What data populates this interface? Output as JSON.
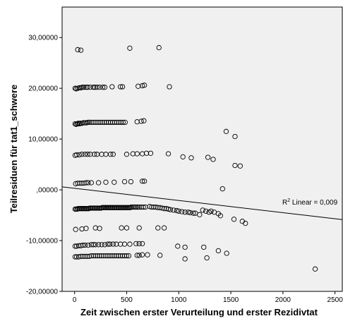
{
  "chart_data": {
    "type": "scatter",
    "xlabel": "Zeit zwischen erster Verurteilung und erster Rezidivtat",
    "ylabel": "Teilresiduen für tat1_schwere",
    "xlim": [
      -120,
      2570
    ],
    "ylim": [
      -20,
      36
    ],
    "x_ticks": [
      0,
      500,
      1000,
      1500,
      2000,
      2500
    ],
    "x_tick_labels": [
      "0",
      "500",
      "1000",
      "1500",
      "2000",
      "2500"
    ],
    "y_ticks": [
      30,
      20,
      10,
      0,
      -10,
      -20
    ],
    "y_tick_labels": [
      "30,00000",
      "20,00000",
      "10,00000",
      ",00000",
      "-10,00000",
      "-20,00000"
    ],
    "grid": false,
    "background": "#f0f0f0",
    "marker_color": "#000000",
    "fit_line": {
      "intercept": 0.3,
      "slope": -0.0024,
      "label_prefix": "R",
      "label_sup": "2",
      "label_suffix": " Linear = 0,009"
    },
    "points": [
      [
        30,
        27.6
      ],
      [
        60,
        27.5
      ],
      [
        530,
        27.9
      ],
      [
        810,
        28.0
      ],
      [
        5,
        20.0
      ],
      [
        15,
        19.9
      ],
      [
        30,
        20.0
      ],
      [
        45,
        20.1
      ],
      [
        60,
        20.1
      ],
      [
        75,
        20.2
      ],
      [
        90,
        20.2
      ],
      [
        110,
        20.2
      ],
      [
        125,
        20.2
      ],
      [
        150,
        20.2
      ],
      [
        180,
        20.2
      ],
      [
        195,
        20.2
      ],
      [
        215,
        20.2
      ],
      [
        240,
        20.2
      ],
      [
        270,
        20.2
      ],
      [
        290,
        20.2
      ],
      [
        360,
        20.3
      ],
      [
        440,
        20.3
      ],
      [
        460,
        20.3
      ],
      [
        610,
        20.4
      ],
      [
        650,
        20.5
      ],
      [
        670,
        20.6
      ],
      [
        910,
        20.3
      ],
      [
        5,
        13.0
      ],
      [
        15,
        12.9
      ],
      [
        25,
        13.0
      ],
      [
        35,
        13.1
      ],
      [
        45,
        13.0
      ],
      [
        55,
        13.1
      ],
      [
        70,
        13.1
      ],
      [
        85,
        13.2
      ],
      [
        100,
        13.2
      ],
      [
        115,
        13.2
      ],
      [
        130,
        13.3
      ],
      [
        145,
        13.3
      ],
      [
        165,
        13.3
      ],
      [
        185,
        13.3
      ],
      [
        205,
        13.3
      ],
      [
        225,
        13.3
      ],
      [
        245,
        13.3
      ],
      [
        265,
        13.3
      ],
      [
        285,
        13.3
      ],
      [
        305,
        13.3
      ],
      [
        325,
        13.3
      ],
      [
        345,
        13.3
      ],
      [
        365,
        13.3
      ],
      [
        385,
        13.3
      ],
      [
        405,
        13.3
      ],
      [
        425,
        13.3
      ],
      [
        445,
        13.3
      ],
      [
        465,
        13.3
      ],
      [
        485,
        13.3
      ],
      [
        600,
        13.4
      ],
      [
        640,
        13.5
      ],
      [
        665,
        13.6
      ],
      [
        1455,
        11.5
      ],
      [
        1540,
        10.5
      ],
      [
        5,
        6.8
      ],
      [
        20,
        6.9
      ],
      [
        45,
        6.9
      ],
      [
        70,
        7.0
      ],
      [
        100,
        7.0
      ],
      [
        125,
        7.0
      ],
      [
        150,
        7.0
      ],
      [
        190,
        7.0
      ],
      [
        215,
        7.0
      ],
      [
        260,
        7.0
      ],
      [
        300,
        7.0
      ],
      [
        345,
        7.0
      ],
      [
        370,
        7.0
      ],
      [
        500,
        7.0
      ],
      [
        560,
        7.1
      ],
      [
        600,
        7.1
      ],
      [
        650,
        7.1
      ],
      [
        690,
        7.2
      ],
      [
        730,
        7.2
      ],
      [
        900,
        7.1
      ],
      [
        1040,
        6.5
      ],
      [
        1120,
        6.3
      ],
      [
        1280,
        6.4
      ],
      [
        1330,
        6.0
      ],
      [
        1540,
        4.8
      ],
      [
        1590,
        4.7
      ],
      [
        10,
        1.2
      ],
      [
        30,
        1.3
      ],
      [
        50,
        1.3
      ],
      [
        70,
        1.3
      ],
      [
        90,
        1.3
      ],
      [
        110,
        1.4
      ],
      [
        130,
        1.4
      ],
      [
        160,
        1.4
      ],
      [
        230,
        1.4
      ],
      [
        300,
        1.5
      ],
      [
        380,
        1.5
      ],
      [
        480,
        1.6
      ],
      [
        540,
        1.6
      ],
      [
        650,
        1.7
      ],
      [
        670,
        1.7
      ],
      [
        1420,
        0.2
      ],
      [
        5,
        -3.8
      ],
      [
        15,
        -3.8
      ],
      [
        25,
        -3.8
      ],
      [
        35,
        -3.7
      ],
      [
        45,
        -3.7
      ],
      [
        55,
        -3.7
      ],
      [
        65,
        -3.7
      ],
      [
        75,
        -3.7
      ],
      [
        85,
        -3.7
      ],
      [
        95,
        -3.7
      ],
      [
        105,
        -3.7
      ],
      [
        115,
        -3.7
      ],
      [
        125,
        -3.7
      ],
      [
        135,
        -3.7
      ],
      [
        145,
        -3.6
      ],
      [
        155,
        -3.6
      ],
      [
        165,
        -3.6
      ],
      [
        175,
        -3.6
      ],
      [
        185,
        -3.6
      ],
      [
        195,
        -3.6
      ],
      [
        205,
        -3.6
      ],
      [
        215,
        -3.6
      ],
      [
        225,
        -3.6
      ],
      [
        235,
        -3.6
      ],
      [
        245,
        -3.6
      ],
      [
        255,
        -3.6
      ],
      [
        265,
        -3.5
      ],
      [
        275,
        -3.5
      ],
      [
        285,
        -3.5
      ],
      [
        295,
        -3.5
      ],
      [
        305,
        -3.5
      ],
      [
        315,
        -3.5
      ],
      [
        325,
        -3.5
      ],
      [
        335,
        -3.5
      ],
      [
        345,
        -3.5
      ],
      [
        355,
        -3.5
      ],
      [
        365,
        -3.5
      ],
      [
        375,
        -3.5
      ],
      [
        385,
        -3.5
      ],
      [
        395,
        -3.5
      ],
      [
        405,
        -3.5
      ],
      [
        415,
        -3.5
      ],
      [
        425,
        -3.5
      ],
      [
        435,
        -3.5
      ],
      [
        445,
        -3.5
      ],
      [
        455,
        -3.5
      ],
      [
        465,
        -3.5
      ],
      [
        475,
        -3.5
      ],
      [
        485,
        -3.5
      ],
      [
        495,
        -3.5
      ],
      [
        505,
        -3.5
      ],
      [
        515,
        -3.5
      ],
      [
        525,
        -3.5
      ],
      [
        535,
        -3.5
      ],
      [
        545,
        -3.4
      ],
      [
        560,
        -3.4
      ],
      [
        575,
        -3.4
      ],
      [
        590,
        -3.4
      ],
      [
        605,
        -3.4
      ],
      [
        620,
        -3.4
      ],
      [
        640,
        -3.4
      ],
      [
        660,
        -3.4
      ],
      [
        680,
        -3.4
      ],
      [
        720,
        -3.3
      ],
      [
        740,
        -3.4
      ],
      [
        760,
        -3.4
      ],
      [
        780,
        -3.4
      ],
      [
        800,
        -3.5
      ],
      [
        820,
        -3.5
      ],
      [
        840,
        -3.6
      ],
      [
        860,
        -3.7
      ],
      [
        880,
        -3.7
      ],
      [
        900,
        -3.8
      ],
      [
        920,
        -3.9
      ],
      [
        950,
        -4.0
      ],
      [
        980,
        -4.1
      ],
      [
        1000,
        -4.2
      ],
      [
        1030,
        -4.3
      ],
      [
        1060,
        -4.4
      ],
      [
        1090,
        -4.4
      ],
      [
        1110,
        -4.5
      ],
      [
        1140,
        -4.6
      ],
      [
        1160,
        -4.6
      ],
      [
        1200,
        -4.9
      ],
      [
        1230,
        -4.0
      ],
      [
        1260,
        -4.2
      ],
      [
        1290,
        -4.4
      ],
      [
        1310,
        -4.2
      ],
      [
        1340,
        -4.4
      ],
      [
        1380,
        -4.7
      ],
      [
        1400,
        -5.1
      ],
      [
        1530,
        -5.8
      ],
      [
        1610,
        -6.2
      ],
      [
        1640,
        -6.6
      ],
      [
        10,
        -7.8
      ],
      [
        70,
        -7.7
      ],
      [
        110,
        -7.6
      ],
      [
        200,
        -7.5
      ],
      [
        240,
        -7.6
      ],
      [
        450,
        -7.5
      ],
      [
        500,
        -7.5
      ],
      [
        620,
        -7.5
      ],
      [
        800,
        -7.5
      ],
      [
        860,
        -7.5
      ],
      [
        5,
        -11.1
      ],
      [
        20,
        -11.1
      ],
      [
        40,
        -11.0
      ],
      [
        60,
        -11.0
      ],
      [
        80,
        -10.9
      ],
      [
        100,
        -10.9
      ],
      [
        130,
        -10.9
      ],
      [
        160,
        -10.8
      ],
      [
        180,
        -10.8
      ],
      [
        200,
        -10.8
      ],
      [
        230,
        -10.8
      ],
      [
        260,
        -10.8
      ],
      [
        290,
        -10.8
      ],
      [
        320,
        -10.7
      ],
      [
        340,
        -10.7
      ],
      [
        370,
        -10.7
      ],
      [
        400,
        -10.7
      ],
      [
        440,
        -10.7
      ],
      [
        480,
        -10.7
      ],
      [
        530,
        -10.7
      ],
      [
        590,
        -10.6
      ],
      [
        620,
        -10.6
      ],
      [
        650,
        -10.6
      ],
      [
        990,
        -11.1
      ],
      [
        1060,
        -11.3
      ],
      [
        1240,
        -11.3
      ],
      [
        1380,
        -12.0
      ],
      [
        1460,
        -12.5
      ],
      [
        5,
        -13.2
      ],
      [
        20,
        -13.2
      ],
      [
        40,
        -13.2
      ],
      [
        60,
        -13.1
      ],
      [
        80,
        -13.1
      ],
      [
        100,
        -13.1
      ],
      [
        120,
        -13.1
      ],
      [
        140,
        -13.1
      ],
      [
        160,
        -13.0
      ],
      [
        180,
        -13.0
      ],
      [
        200,
        -13.0
      ],
      [
        220,
        -13.0
      ],
      [
        240,
        -13.0
      ],
      [
        260,
        -13.0
      ],
      [
        280,
        -13.0
      ],
      [
        300,
        -13.0
      ],
      [
        320,
        -13.0
      ],
      [
        340,
        -13.0
      ],
      [
        360,
        -13.0
      ],
      [
        380,
        -13.0
      ],
      [
        400,
        -13.0
      ],
      [
        420,
        -13.0
      ],
      [
        440,
        -13.0
      ],
      [
        460,
        -13.0
      ],
      [
        480,
        -13.0
      ],
      [
        500,
        -13.0
      ],
      [
        520,
        -13.0
      ],
      [
        600,
        -12.9
      ],
      [
        620,
        -12.9
      ],
      [
        650,
        -12.8
      ],
      [
        700,
        -12.8
      ],
      [
        820,
        -12.9
      ],
      [
        1060,
        -13.6
      ],
      [
        1270,
        -13.4
      ],
      [
        2310,
        -15.6
      ]
    ]
  }
}
